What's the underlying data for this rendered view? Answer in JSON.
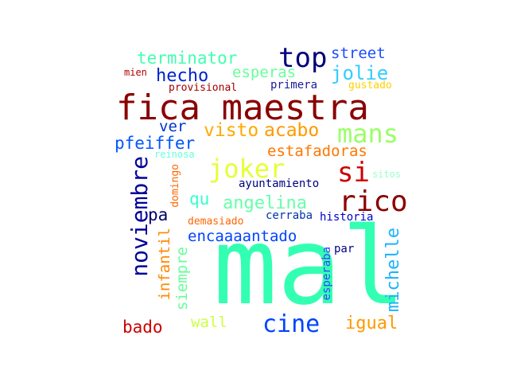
{
  "words": [
    {
      "text": "fica maestra",
      "color": "#8b0000"
    },
    {
      "text": "mal",
      "color": "#33ffb3"
    },
    {
      "text": "top",
      "color": "#00007a"
    },
    {
      "text": "street",
      "color": "#1a4dff"
    },
    {
      "text": "terminator",
      "color": "#40ffb0"
    },
    {
      "text": "esperas",
      "color": "#66ff99"
    },
    {
      "text": "jolie",
      "color": "#33ccff"
    },
    {
      "text": "mien",
      "color": "#b30000"
    },
    {
      "text": "hecho",
      "color": "#0022cc"
    },
    {
      "text": "provisional",
      "color": "#a00000"
    },
    {
      "text": "primera",
      "color": "#1a1aa0"
    },
    {
      "text": "gustado",
      "color": "#ffd000"
    },
    {
      "text": "ver",
      "color": "#0033cc"
    },
    {
      "text": "visto",
      "color": "#ffaa00"
    },
    {
      "text": "acabo",
      "color": "#ff9900"
    },
    {
      "text": "mans",
      "color": "#99ff66"
    },
    {
      "text": "pfeiffer",
      "color": "#0055ff"
    },
    {
      "text": "reinosa",
      "color": "#66ffe0"
    },
    {
      "text": "estafadoras",
      "color": "#ff7700"
    },
    {
      "text": "noviembre",
      "color": "#000099"
    },
    {
      "text": "joker",
      "color": "#e6ff33"
    },
    {
      "text": "si",
      "color": "#cc0000"
    },
    {
      "text": "sitos",
      "color": "#99ffcc"
    },
    {
      "text": "domingo",
      "color": "#ff6600"
    },
    {
      "text": "qu",
      "color": "#33ffcc"
    },
    {
      "text": "ayuntamiento",
      "color": "#000080"
    },
    {
      "text": "angelina",
      "color": "#66ffaa"
    },
    {
      "text": "rico",
      "color": "#8b0000"
    },
    {
      "text": "pa",
      "color": "#000066"
    },
    {
      "text": "demasiado",
      "color": "#ff6600"
    },
    {
      "text": "cerraba",
      "color": "#0033aa"
    },
    {
      "text": "historia",
      "color": "#0000cc"
    },
    {
      "text": "encaaaantado",
      "color": "#0044ff"
    },
    {
      "text": "infantil",
      "color": "#ff8800"
    },
    {
      "text": "siempre",
      "color": "#66ff99"
    },
    {
      "text": "esperaba",
      "color": "#3344ff"
    },
    {
      "text": "par",
      "color": "#000088"
    },
    {
      "text": "michelle",
      "color": "#1ab2ff"
    },
    {
      "text": "bado",
      "color": "#cc0000"
    },
    {
      "text": "wall",
      "color": "#ccff44"
    },
    {
      "text": "cine",
      "color": "#0044ff"
    },
    {
      "text": "igual",
      "color": "#ff9900"
    }
  ]
}
